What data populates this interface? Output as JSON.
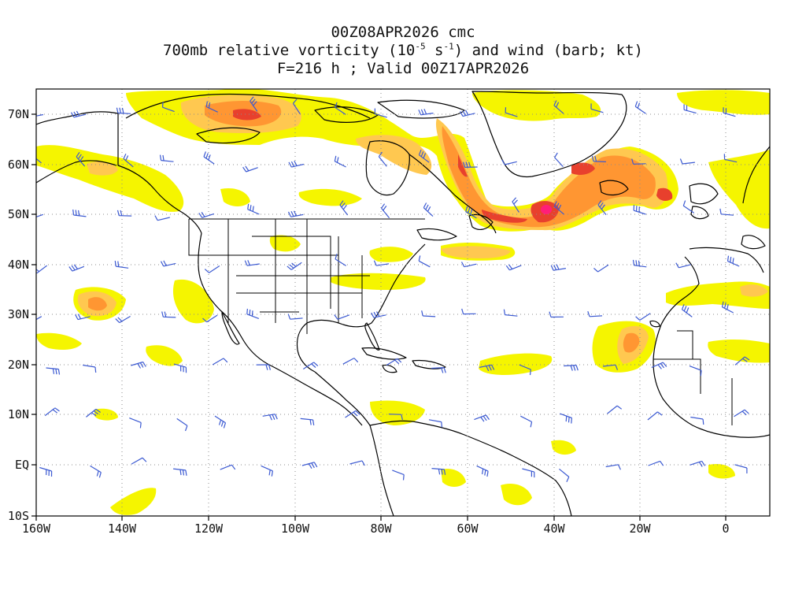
{
  "title": {
    "line1": "00Z08APR2026 cmc",
    "line2_prefix": "700mb relative vorticity (10",
    "line2_exp1": "-5",
    "line2_mid": " s",
    "line2_exp2": "-1",
    "line2_suffix": ") and wind (barb; kt)",
    "line3": "F=216 h ; Valid 00Z17APR2026"
  },
  "axes": {
    "lon_ticks": [
      "160W",
      "140W",
      "120W",
      "100W",
      "80W",
      "60W",
      "40W",
      "20W",
      "0"
    ],
    "lat_ticks": [
      "70N",
      "60N",
      "50N",
      "40N",
      "30N",
      "20N",
      "10N",
      "EQ",
      "10S"
    ]
  },
  "colors": {
    "vort_low": "#f5f500",
    "vort_mid": "#ffc850",
    "vort_high": "#ff9632",
    "vort_max": "#e8402d",
    "vort_peak": "#ff1e78",
    "barb": "#3c5ad2",
    "coast": "#000000",
    "grid": "#8c8c8c"
  }
}
